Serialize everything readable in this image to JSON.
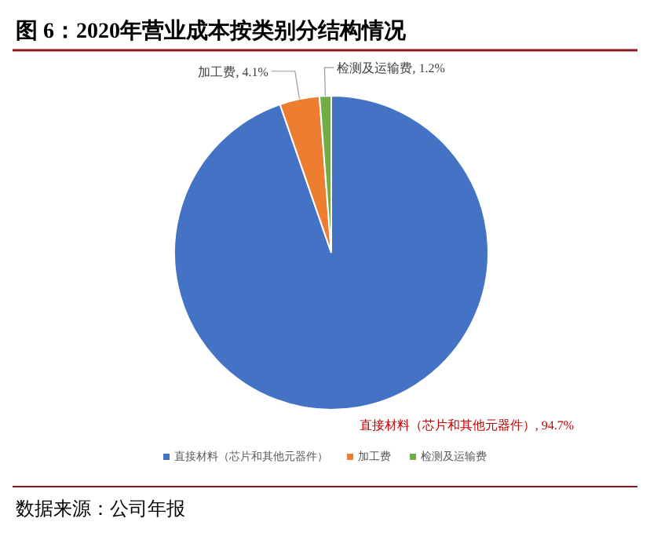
{
  "chart_data": {
    "type": "pie",
    "title": "图 6：2020年营业成本按类别分结构情况",
    "categories": [
      "直接材料（芯片和其他元器件）",
      "加工费",
      "检测及运输费"
    ],
    "values": [
      94.7,
      4.1,
      1.2
    ],
    "colors": [
      "#4472c4",
      "#ed7d31",
      "#70ad47"
    ],
    "value_labels": [
      ", 94.7%",
      ", 4.1%",
      ", 1.2%"
    ],
    "legend": "bottom",
    "annotations": [
      "数据来源：公司年报"
    ]
  }
}
